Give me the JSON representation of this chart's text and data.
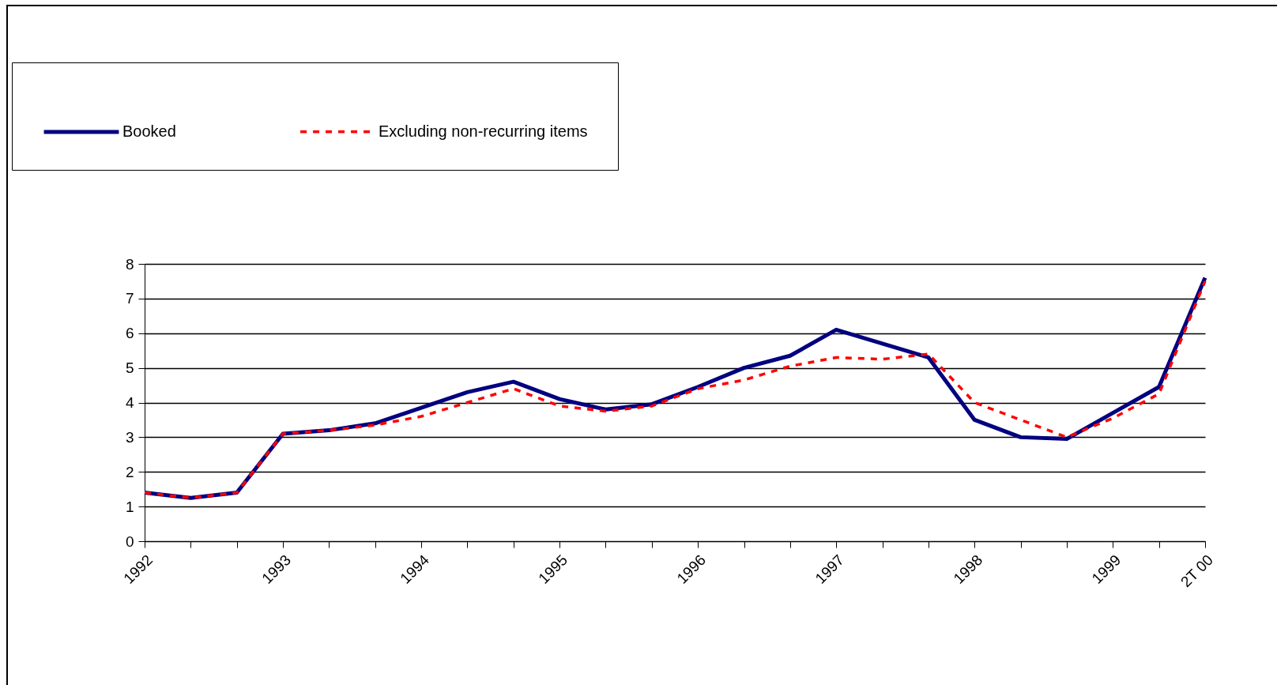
{
  "chart_data": {
    "type": "line",
    "categories": [
      "1992",
      null,
      null,
      "1993",
      null,
      null,
      "1994",
      null,
      null,
      "1995",
      null,
      null,
      "1996",
      null,
      null,
      "1997",
      null,
      null,
      "1998",
      null,
      null,
      "1999",
      null,
      "2T 00"
    ],
    "series": [
      {
        "name": "Booked",
        "color": "#000080",
        "line_style": "solid",
        "values": [
          1.4,
          1.25,
          1.4,
          3.1,
          3.2,
          3.4,
          3.85,
          4.3,
          4.6,
          4.1,
          3.8,
          3.95,
          4.45,
          5.0,
          5.35,
          6.1,
          5.7,
          5.3,
          3.5,
          3.0,
          2.95,
          3.7,
          4.45,
          7.6
        ]
      },
      {
        "name": "Excluding non-recurring items",
        "color": "#ff0000",
        "line_style": "dashed",
        "values": [
          1.4,
          1.25,
          1.4,
          3.1,
          3.2,
          3.35,
          3.6,
          4.0,
          4.4,
          3.9,
          3.75,
          3.9,
          4.4,
          4.65,
          5.05,
          5.3,
          5.25,
          5.4,
          4.0,
          3.5,
          3.0,
          3.55,
          4.25,
          7.5
        ]
      }
    ],
    "ylim": [
      0,
      8
    ],
    "yticks": [
      0,
      1,
      2,
      3,
      4,
      5,
      6,
      7,
      8
    ],
    "grid": "y",
    "legend": "top left",
    "marker": "none"
  }
}
